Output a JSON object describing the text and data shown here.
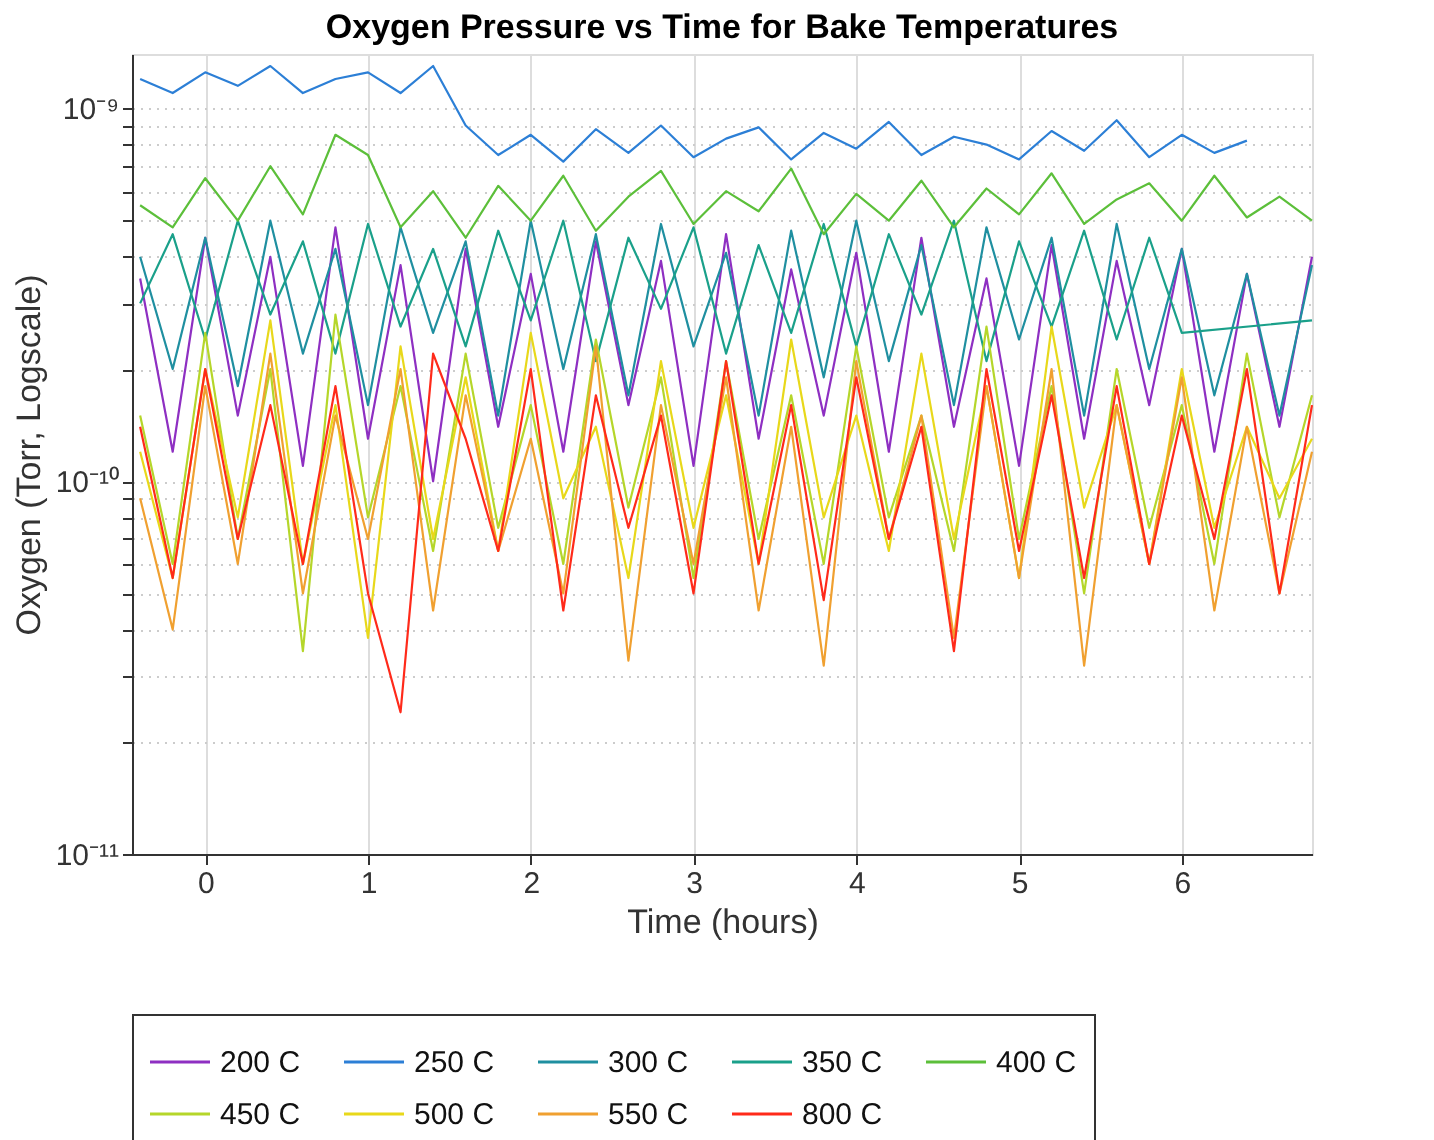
{
  "chart_data": {
    "type": "line",
    "title": "Oxygen Pressure vs Time for Bake Temperatures",
    "xlabel": "Time (hours)",
    "ylabel": "Oxygen (Torr, Logscale)",
    "x": [
      -0.4,
      -0.2,
      0,
      0.2,
      0.4,
      0.6,
      0.8,
      1.0,
      1.2,
      1.4,
      1.6,
      1.8,
      2.0,
      2.2,
      2.4,
      2.6,
      2.8,
      3.0,
      3.2,
      3.4,
      3.6,
      3.8,
      4.0,
      4.2,
      4.4,
      4.6,
      4.8,
      5.0,
      5.2,
      5.4,
      5.6,
      5.8,
      6.0,
      6.2,
      6.4,
      6.6,
      6.8
    ],
    "series": [
      {
        "name": "200 C",
        "color": "#8e2fc2",
        "values": [
          3.5e-10,
          1.2e-10,
          4.5e-10,
          1.5e-10,
          4e-10,
          1.1e-10,
          4.8e-10,
          1.3e-10,
          3.8e-10,
          1e-10,
          4.2e-10,
          1.4e-10,
          3.6e-10,
          1.2e-10,
          4.4e-10,
          1.6e-10,
          3.9e-10,
          1.1e-10,
          4.6e-10,
          1.3e-10,
          3.7e-10,
          1.5e-10,
          4.1e-10,
          1.2e-10,
          4.5e-10,
          1.4e-10,
          3.5e-10,
          1.1e-10,
          4.3e-10,
          1.3e-10,
          3.9e-10,
          1.6e-10,
          4.2e-10,
          1.2e-10,
          3.6e-10,
          1.4e-10,
          4e-10
        ]
      },
      {
        "name": "250 C",
        "color": "#2c7fd6",
        "values": [
          1.2e-09,
          1.1e-09,
          1.25e-09,
          1.15e-09,
          1.3e-09,
          1.1e-09,
          1.2e-09,
          1.25e-09,
          1.1e-09,
          1.3e-09,
          9e-10,
          7.5e-10,
          8.5e-10,
          7.2e-10,
          8.8e-10,
          7.6e-10,
          9e-10,
          7.4e-10,
          8.3e-10,
          8.9e-10,
          7.3e-10,
          8.6e-10,
          7.8e-10,
          9.2e-10,
          7.5e-10,
          8.4e-10,
          8e-10,
          7.3e-10,
          8.7e-10,
          7.7e-10,
          9.3e-10,
          7.4e-10,
          8.5e-10,
          7.6e-10,
          8.2e-10,
          null,
          null
        ]
      },
      {
        "name": "300 C",
        "color": "#1f8fa0",
        "values": [
          4e-10,
          2e-10,
          4.5e-10,
          1.8e-10,
          5e-10,
          2.2e-10,
          4.2e-10,
          1.6e-10,
          4.8e-10,
          2.5e-10,
          4.4e-10,
          1.5e-10,
          5e-10,
          2e-10,
          4.6e-10,
          1.7e-10,
          4.9e-10,
          2.3e-10,
          4.1e-10,
          1.5e-10,
          4.7e-10,
          1.9e-10,
          5e-10,
          2.1e-10,
          4.3e-10,
          1.6e-10,
          4.8e-10,
          2.4e-10,
          4.5e-10,
          1.5e-10,
          4.9e-10,
          2e-10,
          4.2e-10,
          1.7e-10,
          3.6e-10,
          1.5e-10,
          3.8e-10
        ]
      },
      {
        "name": "350 C",
        "color": "#1aa08a",
        "x": [
          -0.4,
          -0.2,
          0,
          0.2,
          0.4,
          0.6,
          0.8,
          1.0,
          1.2,
          1.4,
          1.6,
          1.8,
          2.0,
          2.2,
          2.4,
          2.6,
          2.8,
          3.0,
          3.2,
          3.4,
          3.6,
          3.8,
          4.0,
          4.2,
          4.4,
          4.6,
          4.8,
          5.0,
          5.2,
          5.4,
          5.6,
          5.8,
          6.0,
          6.8
        ],
        "values": [
          3e-10,
          4.6e-10,
          2.4e-10,
          5e-10,
          2.8e-10,
          4.4e-10,
          2.2e-10,
          4.9e-10,
          2.6e-10,
          4.2e-10,
          2.3e-10,
          4.7e-10,
          2.7e-10,
          5e-10,
          2.1e-10,
          4.5e-10,
          2.9e-10,
          4.8e-10,
          2.2e-10,
          4.3e-10,
          2.5e-10,
          4.9e-10,
          2.3e-10,
          4.6e-10,
          2.8e-10,
          5e-10,
          2.1e-10,
          4.4e-10,
          2.6e-10,
          4.7e-10,
          2.4e-10,
          4.5e-10,
          2.5e-10,
          2.7e-10
        ]
      },
      {
        "name": "400 C",
        "color": "#5cbf3a",
        "values": [
          5.5e-10,
          4.8e-10,
          6.5e-10,
          5e-10,
          7e-10,
          5.2e-10,
          8.5e-10,
          7.5e-10,
          4.8e-10,
          6e-10,
          4.5e-10,
          6.2e-10,
          5e-10,
          6.6e-10,
          4.7e-10,
          5.8e-10,
          6.8e-10,
          4.9e-10,
          6e-10,
          5.3e-10,
          6.9e-10,
          4.6e-10,
          5.9e-10,
          5e-10,
          6.4e-10,
          4.8e-10,
          6.1e-10,
          5.2e-10,
          6.7e-10,
          4.9e-10,
          5.7e-10,
          6.3e-10,
          5e-10,
          6.6e-10,
          5.1e-10,
          5.8e-10,
          5e-10
        ]
      },
      {
        "name": "450 C",
        "color": "#b5d62a",
        "values": [
          1.5e-10,
          6e-11,
          2.5e-10,
          7e-11,
          2e-10,
          3.5e-11,
          2.8e-10,
          8e-11,
          1.8e-10,
          6.5e-11,
          2.2e-10,
          7.5e-11,
          1.6e-10,
          6e-11,
          2.4e-10,
          8.5e-11,
          1.9e-10,
          5.5e-11,
          2.1e-10,
          7e-11,
          1.7e-10,
          6e-11,
          2.3e-10,
          8e-11,
          1.5e-10,
          6.5e-11,
          2.6e-10,
          7e-11,
          1.8e-10,
          5e-11,
          2e-10,
          7.5e-11,
          1.6e-10,
          6e-11,
          2.2e-10,
          8e-11,
          1.7e-10
        ]
      },
      {
        "name": "500 C",
        "color": "#e8d81a",
        "values": [
          1.2e-10,
          5.5e-11,
          2e-10,
          8e-11,
          2.7e-10,
          6e-11,
          1.6e-10,
          3.8e-11,
          2.3e-10,
          7e-11,
          1.9e-10,
          6.5e-11,
          2.5e-10,
          9e-11,
          1.4e-10,
          5.5e-11,
          2.1e-10,
          7.5e-11,
          1.7e-10,
          6e-11,
          2.4e-10,
          8e-11,
          1.5e-10,
          6.5e-11,
          2.2e-10,
          7e-11,
          1.8e-10,
          5.5e-11,
          2.6e-10,
          8.5e-11,
          1.6e-10,
          6e-11,
          2e-10,
          7.5e-11,
          1.4e-10,
          9e-11,
          1.3e-10
        ]
      },
      {
        "name": "550 C",
        "color": "#f0a030",
        "values": [
          9e-11,
          4e-11,
          1.8e-10,
          6e-11,
          2.2e-10,
          5e-11,
          1.5e-10,
          7e-11,
          2e-10,
          4.5e-11,
          1.7e-10,
          6.5e-11,
          1.3e-10,
          5e-11,
          2.3e-10,
          3.3e-11,
          1.6e-10,
          6e-11,
          1.9e-10,
          4.5e-11,
          1.4e-10,
          3.2e-11,
          2.1e-10,
          7e-11,
          1.5e-10,
          3.8e-11,
          1.8e-10,
          5.5e-11,
          2e-10,
          3.2e-11,
          1.6e-10,
          6e-11,
          1.9e-10,
          4.5e-11,
          1.4e-10,
          5e-11,
          1.2e-10
        ]
      },
      {
        "name": "800 C",
        "color": "#ff2a1a",
        "values": [
          1.4e-10,
          5.5e-11,
          2e-10,
          7e-11,
          1.6e-10,
          6e-11,
          1.8e-10,
          5e-11,
          2.4e-11,
          2.2e-10,
          1.3e-10,
          6.5e-11,
          2e-10,
          4.5e-11,
          1.7e-10,
          7.5e-11,
          1.5e-10,
          5e-11,
          2.1e-10,
          6e-11,
          1.6e-10,
          4.8e-11,
          1.9e-10,
          7e-11,
          1.4e-10,
          3.5e-11,
          2e-10,
          6.5e-11,
          1.7e-10,
          5.5e-11,
          1.8e-10,
          6e-11,
          1.5e-10,
          7e-11,
          2e-10,
          5e-11,
          1.6e-10
        ]
      }
    ],
    "xlim": [
      -0.45,
      6.8
    ],
    "xticks": [
      0,
      1,
      2,
      3,
      4,
      5,
      6
    ],
    "ylim": [
      1e-11,
      1.4e-09
    ],
    "yticks": [
      {
        "value": 1e-11,
        "label": "10⁻¹¹"
      },
      {
        "value": 2e-11,
        "label": null
      },
      {
        "value": 3e-11,
        "label": null
      },
      {
        "value": 4e-11,
        "label": null
      },
      {
        "value": 5e-11,
        "label": null
      },
      {
        "value": 6e-11,
        "label": null
      },
      {
        "value": 7e-11,
        "label": null
      },
      {
        "value": 8e-11,
        "label": null
      },
      {
        "value": 9e-11,
        "label": null
      },
      {
        "value": 1e-10,
        "label": "10⁻¹⁰"
      },
      {
        "value": 2e-10,
        "label": null
      },
      {
        "value": 3e-10,
        "label": null
      },
      {
        "value": 4e-10,
        "label": null
      },
      {
        "value": 5e-10,
        "label": null
      },
      {
        "value": 6e-10,
        "label": null
      },
      {
        "value": 7e-10,
        "label": null
      },
      {
        "value": 8e-10,
        "label": null
      },
      {
        "value": 9e-10,
        "label": null
      },
      {
        "value": 1e-09,
        "label": "10⁻⁹"
      }
    ],
    "log": "y",
    "grid": true,
    "legend": "bottom"
  }
}
